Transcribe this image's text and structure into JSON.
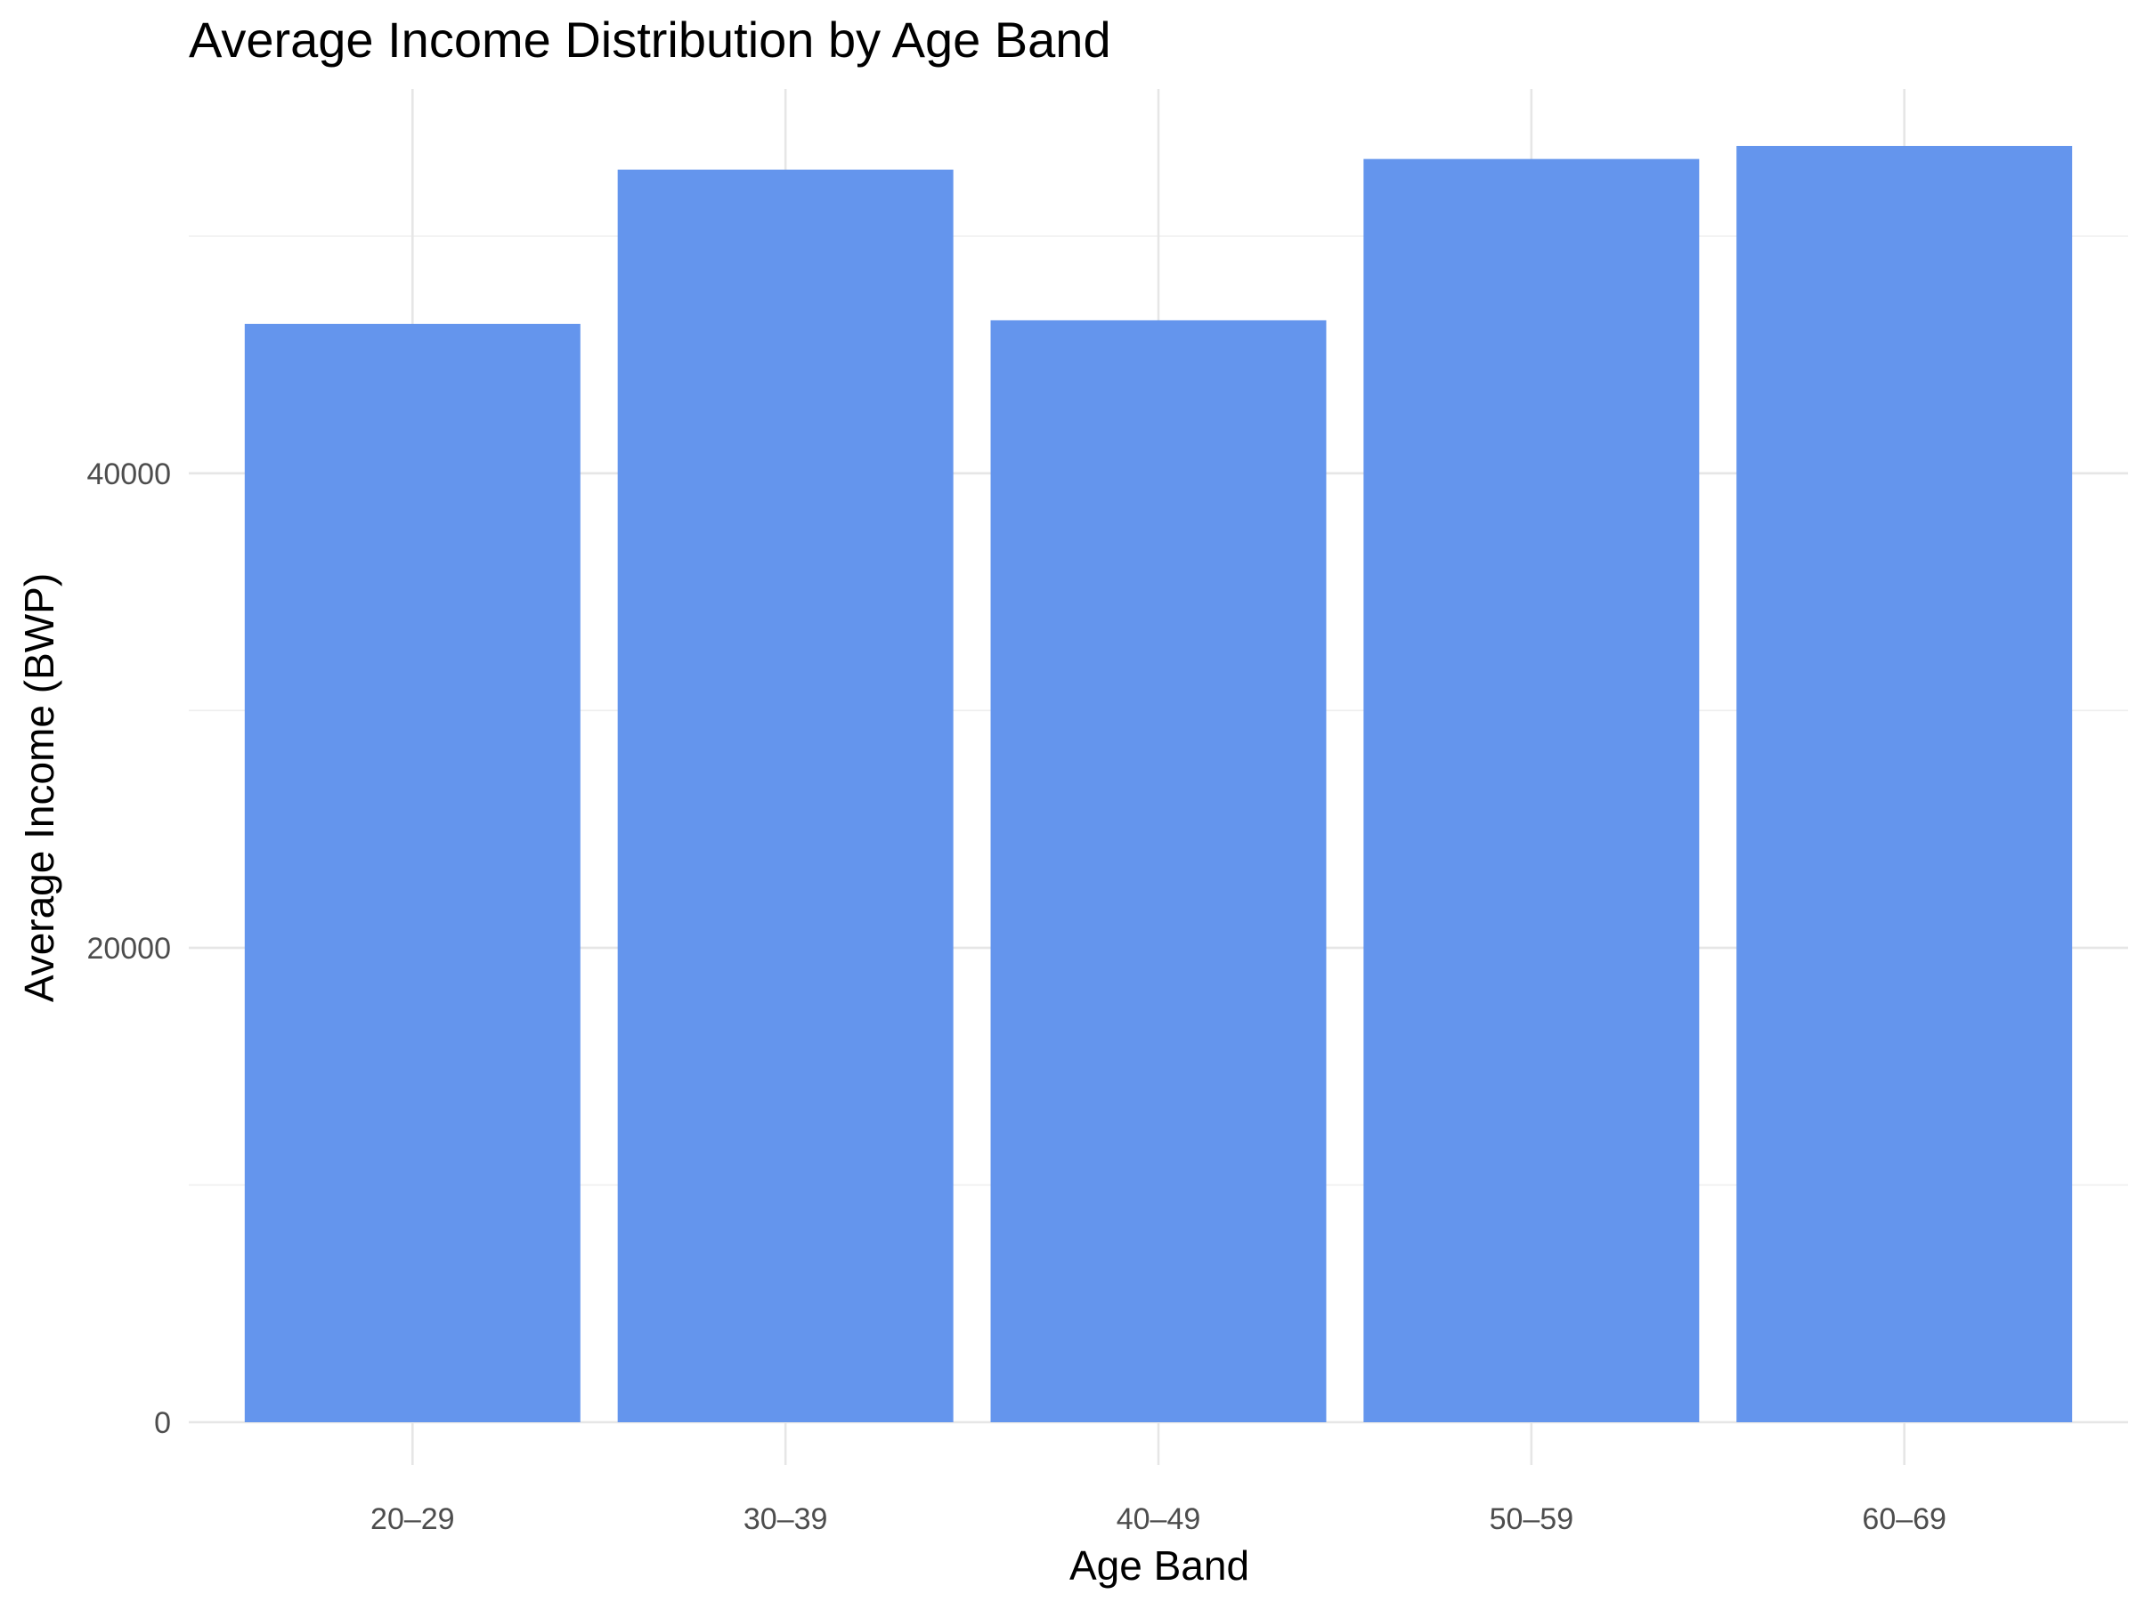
{
  "chart_data": {
    "type": "bar",
    "title": "Average Income Distribution by Age Band",
    "xlabel": "Age Band",
    "ylabel": "Average Income (BWP)",
    "categories": [
      "20–29",
      "30–39",
      "40–49",
      "50–59",
      "60–69"
    ],
    "values": [
      46300,
      52800,
      46450,
      53250,
      53800
    ],
    "y_ticks": [
      0,
      20000,
      40000
    ],
    "y_tick_labels": [
      "0",
      "20000",
      "40000"
    ],
    "ylim": [
      0,
      56200
    ],
    "grid": true,
    "bar_color": "#6495ED"
  }
}
